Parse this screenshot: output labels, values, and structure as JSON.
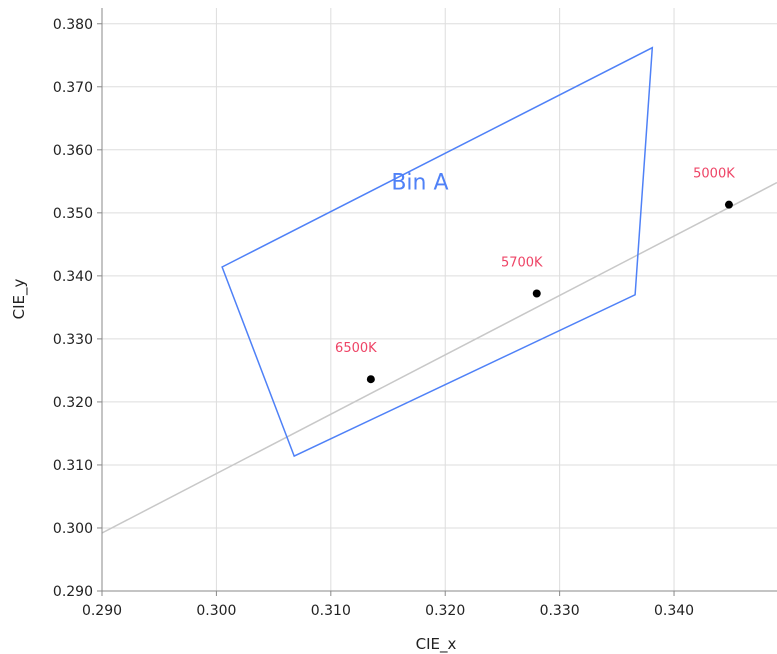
{
  "chart_data": {
    "type": "scatter",
    "xlabel": "CIE_x",
    "ylabel": "CIE_y",
    "xlim": [
      0.29,
      0.349
    ],
    "ylim": [
      0.29,
      0.3825
    ],
    "x_ticks": [
      "0.290",
      "0.300",
      "0.310",
      "0.320",
      "0.330",
      "0.340"
    ],
    "y_ticks": [
      "0.290",
      "0.300",
      "0.310",
      "0.320",
      "0.330",
      "0.340",
      "0.350",
      "0.360",
      "0.370",
      "0.380"
    ],
    "grid": true,
    "line": {
      "points": [
        [
          0.29,
          0.2992
        ],
        [
          0.349,
          0.3548
        ]
      ],
      "color": "#c8c8c8"
    },
    "region": {
      "name": "Bin A",
      "color": "#4f81f7",
      "vertices": [
        [
          0.3005,
          0.3414
        ],
        [
          0.3381,
          0.3762
        ],
        [
          0.3366,
          0.337
        ],
        [
          0.3068,
          0.3114
        ]
      ]
    },
    "points": [
      {
        "label": "6500K",
        "x": 0.3135,
        "y": 0.3236
      },
      {
        "label": "5700K",
        "x": 0.328,
        "y": 0.3372
      },
      {
        "label": "5000K",
        "x": 0.3448,
        "y": 0.3513
      }
    ],
    "point_color": "#000000",
    "point_label_color": "#ee4466",
    "axis_color": "#888888",
    "grid_color": "#dddddd"
  }
}
